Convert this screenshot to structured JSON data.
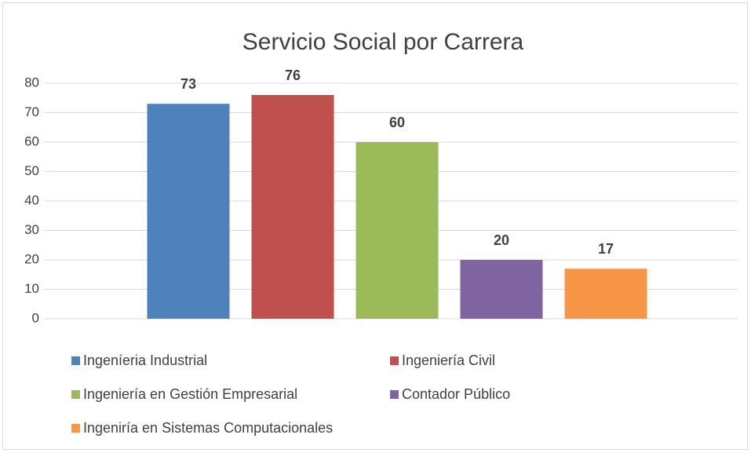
{
  "chart_data": {
    "type": "bar",
    "title": "Servicio Social por Carrera",
    "series": [
      {
        "name": "Ingeníeria Industrial",
        "color": "#4f81bd",
        "values": [
          73
        ]
      },
      {
        "name": "Ingeniería Civil",
        "color": "#c0504d",
        "values": [
          76
        ]
      },
      {
        "name": "Ingeniería en Gestión Empresarial",
        "color": "#9bbb59",
        "values": [
          60
        ]
      },
      {
        "name": "Contador Público",
        "color": "#8064a2",
        "values": [
          20
        ]
      },
      {
        "name": "Ingeniría en Sistemas Computacionales",
        "color": "#f79646",
        "values": [
          17
        ]
      }
    ],
    "ylim": [
      0,
      80
    ],
    "yticks": [
      0,
      10,
      20,
      30,
      40,
      50,
      60,
      70,
      80
    ],
    "grid": true,
    "legend": "bottom"
  }
}
